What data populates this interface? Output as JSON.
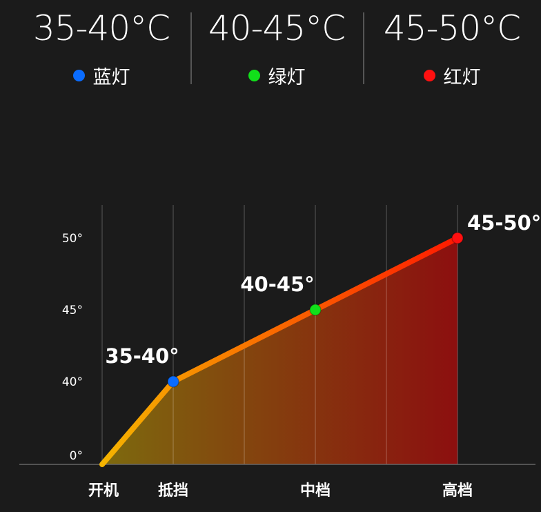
{
  "header": {
    "columns": [
      {
        "range": "35-40°C",
        "light": "蓝灯",
        "color": "#0a6cff"
      },
      {
        "range": "40-45°C",
        "light": "绿灯",
        "color": "#11e01a"
      },
      {
        "range": "45-50°C",
        "light": "红灯",
        "color": "#ff1010"
      }
    ]
  },
  "chart_data": {
    "type": "area",
    "x_positions": [
      "开机",
      "抵挡",
      "",
      "中档",
      "",
      "高档"
    ],
    "categories": [
      "开机",
      "抵挡",
      "中档",
      "高档"
    ],
    "category_index": [
      0,
      1,
      3,
      5
    ],
    "values": [
      0,
      40,
      45,
      50
    ],
    "point_labels": [
      "",
      "35-40°",
      "40-45°",
      "45-50°"
    ],
    "point_colors": [
      "",
      "#0a6cff",
      "#11e01a",
      "#ff1010"
    ],
    "y_ticks": [
      0,
      40,
      45,
      50
    ],
    "y_tick_labels": [
      "0°",
      "40°",
      "45°",
      "50°"
    ],
    "line_colors": [
      "#f5b400",
      "#ff1a00"
    ],
    "fill_colors": [
      "#7d6a0e",
      "#8c0f0f"
    ],
    "grid": "vertical"
  }
}
